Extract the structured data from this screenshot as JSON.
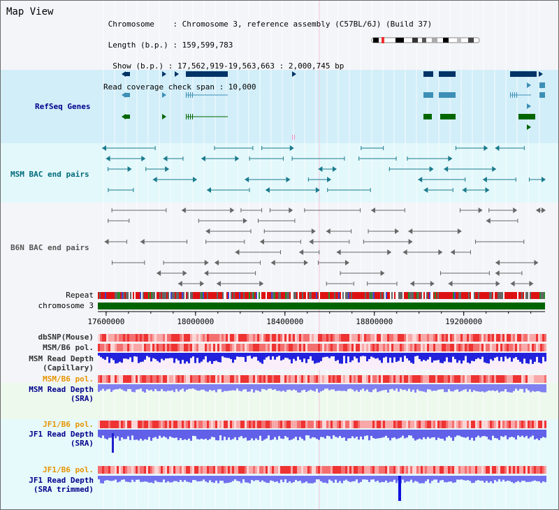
{
  "app": {
    "title": "Map View"
  },
  "header": {
    "lines": [
      " Chromosome    : Chromosome 3, reference assembly (C57BL/6J) (Build 37)",
      " Length (b.p.) : 159,599,783",
      "  Show (b.p.) : 17,562,919-19,563,663 : 2,000,745 bp",
      "Read coverage check span : 10,000"
    ]
  },
  "tracks": {
    "refseq": {
      "label": "RefSeq Genes",
      "color": "#00008b"
    },
    "msm_bac": {
      "label": "MSM BAC end pairs",
      "color": "#006b7a"
    },
    "b6n_bac": {
      "label": "B6N BAC end pairs",
      "color": "#555555"
    },
    "repeat": {
      "label": "Repeat"
    },
    "chromosome": {
      "label": "chromosome 3"
    },
    "dbsnp": {
      "label": "dbSNP(Mouse)",
      "color": "#333333"
    },
    "msm_b6_pol": {
      "label": "MSM/B6 pol.",
      "color": "#333333"
    },
    "msm_depth_cap": {
      "label": "MSM Read Depth\n(Capillary)",
      "color": "#333333"
    },
    "msm_b6_pol2": {
      "label": "MSM/B6 pol.",
      "color": "#e69500"
    },
    "msm_depth_sra": {
      "label": "MSM Read Depth\n(SRA)",
      "color": "#00008b"
    },
    "jf1_b6_pol": {
      "label": "JF1/B6 pol.",
      "color": "#e69500"
    },
    "jf1_depth_sra": {
      "label": "JF1 Read Depth\n(SRA)",
      "color": "#00008b"
    },
    "jf1_b6_pol2": {
      "label": "JF1/B6 pol.",
      "color": "#e69500"
    },
    "jf1_depth_trim": {
      "label": "JF1 Read Depth\n(SRA trimmed)",
      "color": "#00008b"
    }
  },
  "axis": {
    "ticks": [
      {
        "value": 17600000,
        "label": "17600000"
      },
      {
        "value": 18000000,
        "label": "18000000"
      },
      {
        "value": 18400000,
        "label": "18400000"
      },
      {
        "value": 18800000,
        "label": "18800000"
      },
      {
        "value": 19200000,
        "label": "19200000"
      }
    ],
    "start": 17562919,
    "end": 19563663
  },
  "colors": {
    "refseq_bg": "#d2eef9",
    "bac_bg": "#e3f8fb",
    "b6n_bg": "#f4f5f9",
    "lower_bg": "#e6f9fb",
    "msm_sra_bg": "#eef9ee",
    "cap_bg": "#f9eef9",
    "chrom_green": "#006400",
    "gene_navy": "#003366",
    "gene_teal": "#3d8fb5",
    "gene_green": "#006600",
    "depth_blue": "#2222dd",
    "depth_light": "#8080f0",
    "pol_red": "#ee3333",
    "pol_light": "#f8b0b0"
  }
}
